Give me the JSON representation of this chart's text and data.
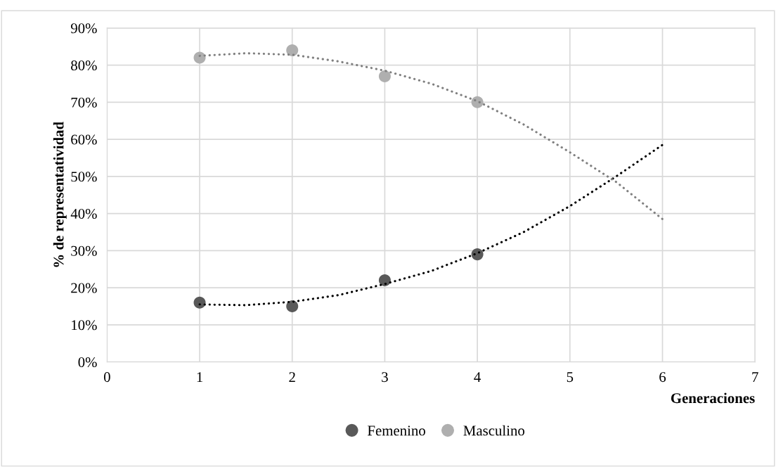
{
  "chart_data": {
    "type": "scatter",
    "xlabel": "Generaciones",
    "ylabel": "% de representatividad",
    "xlim": [
      0,
      7
    ],
    "xticks": [
      0,
      1,
      2,
      3,
      4,
      5,
      6,
      7
    ],
    "ylim": [
      0,
      90
    ],
    "yticks": [
      {
        "value": 0,
        "label": "0%"
      },
      {
        "value": 10,
        "label": "10%"
      },
      {
        "value": 20,
        "label": "20%"
      },
      {
        "value": 30,
        "label": "30%"
      },
      {
        "value": 40,
        "label": "40%"
      },
      {
        "value": 50,
        "label": "50%"
      },
      {
        "value": 60,
        "label": "60%"
      },
      {
        "value": 70,
        "label": "70%"
      },
      {
        "value": 80,
        "label": "80%"
      },
      {
        "value": 90,
        "label": "90%"
      }
    ],
    "grid": true,
    "legend": "bottom",
    "marker": "circle",
    "series": [
      {
        "name": "Femenino",
        "color": "#595959",
        "x": [
          1,
          2,
          3,
          4
        ],
        "values": [
          16,
          15,
          22,
          29
        ]
      },
      {
        "name": "Masculino",
        "color": "#afafaf",
        "x": [
          1,
          2,
          3,
          4
        ],
        "values": [
          82,
          84,
          77,
          70
        ]
      },
      {
        "type": "line",
        "color": "#000000",
        "line_style": "dotted",
        "marker": "none",
        "x": [
          1,
          1.5,
          2,
          2.5,
          3,
          3.5,
          4,
          4.5,
          5,
          5.5,
          6
        ],
        "values": [
          15.5,
          15.3,
          16.2,
          18,
          21,
          24.5,
          29.3,
          35,
          42,
          50,
          58.5
        ]
      },
      {
        "type": "line",
        "color": "#7f7f7f",
        "line_style": "dotted",
        "marker": "none",
        "x": [
          1,
          1.5,
          2,
          2.5,
          3,
          3.5,
          4,
          4.5,
          5,
          5.5,
          6
        ],
        "values": [
          82.5,
          83.2,
          82.8,
          81,
          78.5,
          75,
          70.3,
          64,
          56.5,
          48.5,
          38.5
        ]
      }
    ]
  }
}
